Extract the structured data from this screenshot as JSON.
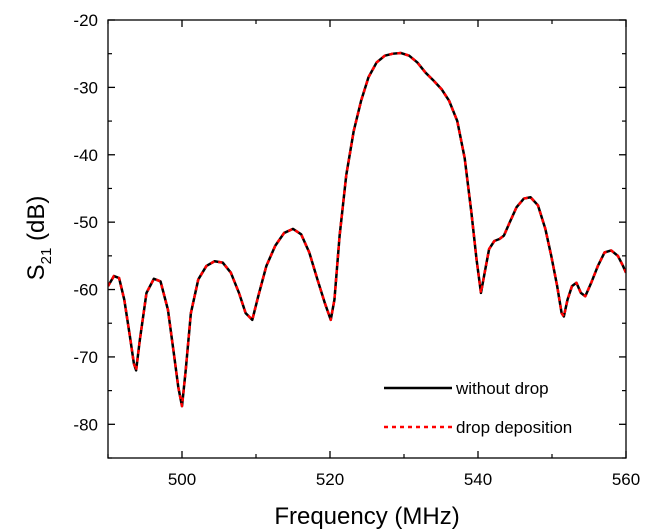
{
  "chart_data": {
    "type": "line",
    "title": "",
    "xlabel": "Frequency (MHz)",
    "ylabel": {
      "main": "S",
      "sub": "21",
      "unit": " (dB)"
    },
    "xlim": [
      490,
      560
    ],
    "ylim": [
      -85,
      -20
    ],
    "xticks": [
      500,
      520,
      540,
      560
    ],
    "yticks": [
      -20,
      -30,
      -40,
      -50,
      -60,
      -70,
      -80
    ],
    "grid": false,
    "legend_position": "bottom-right",
    "series": [
      {
        "name": "without drop",
        "color": "#000000",
        "style": "solid",
        "x": [
          490,
          490.8,
          491.5,
          492.2,
          492.9,
          493.5,
          493.8,
          494.3,
          495.2,
          496.2,
          497.1,
          498.1,
          498.9,
          499.5,
          500.0,
          500.5,
          501.2,
          502.2,
          503.3,
          504.4,
          505.5,
          506.6,
          507.7,
          508.6,
          509.5,
          510.3,
          511.4,
          512.6,
          513.8,
          515.0,
          516.1,
          517.2,
          518.3,
          519.3,
          520.1,
          520.6,
          521.3,
          522.2,
          523.2,
          524.2,
          525.2,
          526.3,
          527.4,
          528.5,
          529.6,
          530.7,
          531.8,
          532.9,
          534.0,
          535.1,
          536.1,
          537.2,
          538.2,
          539.1,
          539.8,
          540.4,
          540.9,
          541.5,
          542.2,
          542.9,
          543.5,
          544.3,
          545.2,
          546.2,
          547.1,
          548.1,
          549.1,
          549.9,
          550.7,
          551.3,
          551.6,
          552.1,
          552.7,
          553.3,
          553.9,
          554.5,
          555.3,
          556.2,
          557.1,
          558.0,
          558.9,
          559.6,
          560
        ],
        "y": [
          -59.5,
          -58.0,
          -58.3,
          -61.5,
          -66.5,
          -71.0,
          -72.0,
          -67.5,
          -60.5,
          -58.4,
          -58.8,
          -63.0,
          -69.5,
          -74.5,
          -77.3,
          -72.0,
          -63.5,
          -58.5,
          -56.5,
          -55.8,
          -56.0,
          -57.5,
          -60.5,
          -63.5,
          -64.5,
          -61.0,
          -56.5,
          -53.5,
          -51.6,
          -51.0,
          -51.8,
          -54.5,
          -58.5,
          -62.0,
          -64.5,
          -61.5,
          -52.0,
          -43.0,
          -36.5,
          -32.0,
          -28.5,
          -26.3,
          -25.3,
          -25.0,
          -24.9,
          -25.3,
          -26.3,
          -27.8,
          -29.0,
          -30.3,
          -32.0,
          -35.0,
          -40.5,
          -48.5,
          -55.5,
          -60.5,
          -57.5,
          -54.0,
          -52.8,
          -52.5,
          -52.0,
          -50.0,
          -47.8,
          -46.5,
          -46.3,
          -47.5,
          -51.0,
          -55.0,
          -59.5,
          -63.5,
          -64.0,
          -61.5,
          -59.5,
          -59.0,
          -60.5,
          -61.0,
          -59.0,
          -56.5,
          -54.5,
          -54.2,
          -55.0,
          -56.5,
          -57.5
        ]
      },
      {
        "name": "drop deposition",
        "color": "#ff0000",
        "style": "dotted",
        "x": [
          490,
          490.8,
          491.5,
          492.2,
          492.9,
          493.5,
          493.8,
          494.3,
          495.2,
          496.2,
          497.1,
          498.1,
          498.9,
          499.5,
          500.0,
          500.5,
          501.2,
          502.2,
          503.3,
          504.4,
          505.5,
          506.6,
          507.7,
          508.6,
          509.5,
          510.3,
          511.4,
          512.6,
          513.8,
          515.0,
          516.1,
          517.2,
          518.3,
          519.3,
          520.1,
          520.6,
          521.3,
          522.2,
          523.2,
          524.2,
          525.2,
          526.3,
          527.4,
          528.5,
          529.6,
          530.7,
          531.8,
          532.9,
          534.0,
          535.1,
          536.1,
          537.2,
          538.2,
          539.1,
          539.8,
          540.4,
          540.9,
          541.5,
          542.2,
          542.9,
          543.5,
          544.3,
          545.2,
          546.2,
          547.1,
          548.1,
          549.1,
          549.9,
          550.7,
          551.3,
          551.6,
          552.1,
          552.7,
          553.3,
          553.9,
          554.5,
          555.3,
          556.2,
          557.1,
          558.0,
          558.9,
          559.6,
          560
        ],
        "y": [
          -59.5,
          -58.0,
          -58.3,
          -61.5,
          -66.5,
          -71.0,
          -72.0,
          -67.5,
          -60.5,
          -58.4,
          -58.8,
          -63.0,
          -69.5,
          -74.5,
          -77.3,
          -72.0,
          -63.5,
          -58.5,
          -56.5,
          -55.8,
          -56.0,
          -57.5,
          -60.5,
          -63.5,
          -64.5,
          -61.0,
          -56.5,
          -53.5,
          -51.6,
          -51.0,
          -51.8,
          -54.5,
          -58.5,
          -62.0,
          -64.5,
          -61.5,
          -52.0,
          -43.0,
          -36.5,
          -32.0,
          -28.5,
          -26.3,
          -25.3,
          -25.0,
          -24.9,
          -25.3,
          -26.3,
          -27.8,
          -29.0,
          -30.3,
          -32.0,
          -35.0,
          -40.5,
          -48.5,
          -55.5,
          -60.5,
          -57.5,
          -54.0,
          -52.8,
          -52.5,
          -52.0,
          -50.0,
          -47.8,
          -46.5,
          -46.3,
          -47.5,
          -51.0,
          -55.0,
          -59.5,
          -63.5,
          -64.0,
          -61.5,
          -59.5,
          -59.0,
          -60.5,
          -61.0,
          -59.0,
          -56.5,
          -54.5,
          -54.2,
          -55.0,
          -56.5,
          -57.5
        ]
      }
    ]
  }
}
